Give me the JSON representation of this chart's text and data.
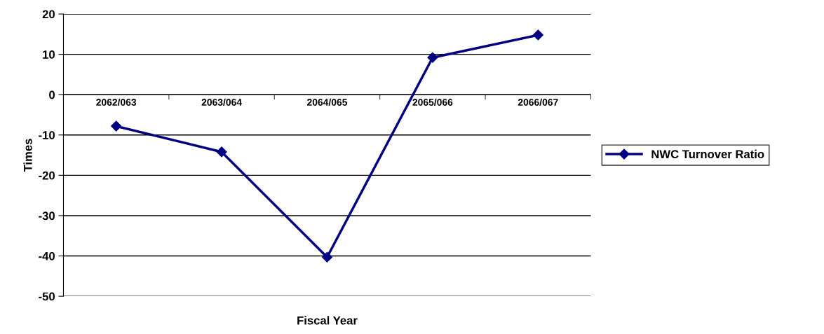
{
  "chart_data": {
    "type": "line",
    "xlabel": "Fiscal Year",
    "ylabel": "Times",
    "categories": [
      "2062/063",
      "2063/064",
      "2064/065",
      "2065/066",
      "2066/067"
    ],
    "series": [
      {
        "name": "NWC Turnover Ratio",
        "color": "#000080",
        "values": [
          -7.8,
          -14.2,
          -40.3,
          9.2,
          14.8
        ]
      }
    ],
    "ylim": [
      -50,
      20
    ],
    "yticks": [
      -50,
      -40,
      -30,
      -20,
      -10,
      0,
      10,
      20
    ],
    "grid": "y",
    "legend": "right",
    "marker": "diamond",
    "line_style": "solid"
  }
}
